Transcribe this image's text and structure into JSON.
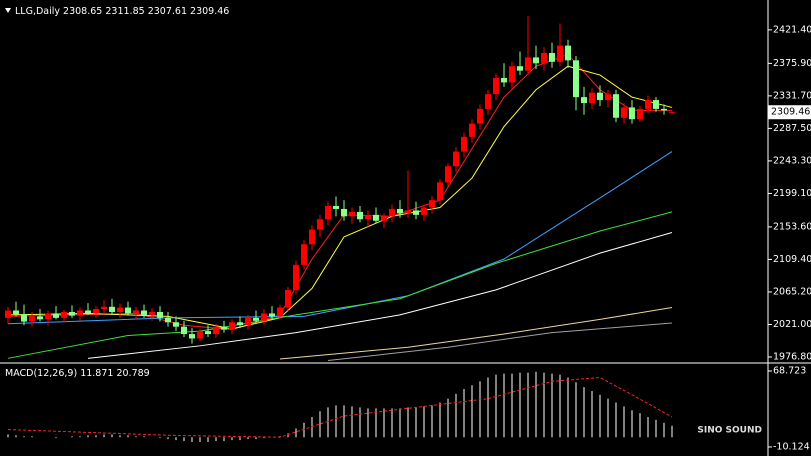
{
  "chart_data": [
    {
      "type": "candlestick",
      "title": "LLG,Daily",
      "up_color": "#ff0000",
      "down_color": "#8cff8c",
      "ylim": [
        1970,
        2462
      ],
      "yticks": [
        {
          "value": 2421.4,
          "label": "2421.40"
        },
        {
          "value": 2375.9,
          "label": "2375.90"
        },
        {
          "value": 2331.7,
          "label": "2331.70"
        },
        {
          "value": 2287.5,
          "label": "2287.50"
        },
        {
          "value": 2243.3,
          "label": "2243.30"
        },
        {
          "value": 2199.1,
          "label": "2199.10"
        },
        {
          "value": 2153.6,
          "label": "2153.60"
        },
        {
          "value": 2109.4,
          "label": "2109.40"
        },
        {
          "value": 2065.2,
          "label": "2065.20"
        },
        {
          "value": 2021,
          "label": "2021.00"
        },
        {
          "value": 1976.8,
          "label": "1976.80"
        }
      ],
      "ohlc": [
        [
          2030,
          2045,
          2022,
          2040
        ],
        [
          2040,
          2052,
          2032,
          2035
        ],
        [
          2035,
          2048,
          2020,
          2025
        ],
        [
          2025,
          2038,
          2018,
          2032
        ],
        [
          2032,
          2042,
          2025,
          2028
        ],
        [
          2028,
          2040,
          2020,
          2036
        ],
        [
          2036,
          2046,
          2028,
          2030
        ],
        [
          2030,
          2041,
          2024,
          2038
        ],
        [
          2038,
          2047,
          2030,
          2033
        ],
        [
          2033,
          2044,
          2026,
          2040
        ],
        [
          2040,
          2050,
          2034,
          2036
        ],
        [
          2036,
          2046,
          2030,
          2042
        ],
        [
          2042,
          2054,
          2035,
          2045
        ],
        [
          2045,
          2056,
          2034,
          2038
        ],
        [
          2038,
          2049,
          2030,
          2044
        ],
        [
          2044,
          2052,
          2033,
          2036
        ],
        [
          2036,
          2045,
          2028,
          2040
        ],
        [
          2040,
          2048,
          2030,
          2034
        ],
        [
          2034,
          2043,
          2026,
          2038
        ],
        [
          2038,
          2046,
          2025,
          2030
        ],
        [
          2030,
          2038,
          2018,
          2024
        ],
        [
          2024,
          2032,
          2012,
          2018
        ],
        [
          2018,
          2026,
          2004,
          2008
        ],
        [
          2008,
          2016,
          1995,
          2002
        ],
        [
          2002,
          2015,
          1998,
          2012
        ],
        [
          2012,
          2020,
          2004,
          2008
        ],
        [
          2008,
          2022,
          2003,
          2018
        ],
        [
          2018,
          2026,
          2010,
          2014
        ],
        [
          2014,
          2028,
          2008,
          2024
        ],
        [
          2024,
          2032,
          2016,
          2020
        ],
        [
          2020,
          2034,
          2014,
          2030
        ],
        [
          2030,
          2040,
          2022,
          2026
        ],
        [
          2026,
          2042,
          2020,
          2036
        ],
        [
          2036,
          2046,
          2028,
          2032
        ],
        [
          2032,
          2048,
          2028,
          2044
        ],
        [
          2044,
          2072,
          2040,
          2068
        ],
        [
          2068,
          2108,
          2062,
          2102
        ],
        [
          2102,
          2136,
          2096,
          2130
        ],
        [
          2130,
          2156,
          2122,
          2150
        ],
        [
          2150,
          2170,
          2140,
          2164
        ],
        [
          2164,
          2188,
          2156,
          2182
        ],
        [
          2182,
          2195,
          2168,
          2178
        ],
        [
          2178,
          2190,
          2162,
          2168
        ],
        [
          2168,
          2180,
          2158,
          2174
        ],
        [
          2174,
          2182,
          2160,
          2164
        ],
        [
          2164,
          2176,
          2154,
          2170
        ],
        [
          2170,
          2180,
          2158,
          2162
        ],
        [
          2162,
          2172,
          2152,
          2168
        ],
        [
          2168,
          2184,
          2160,
          2178
        ],
        [
          2178,
          2190,
          2166,
          2172
        ],
        [
          2172,
          2230,
          2166,
          2176
        ],
        [
          2176,
          2188,
          2164,
          2170
        ],
        [
          2170,
          2184,
          2162,
          2180
        ],
        [
          2180,
          2196,
          2172,
          2190
        ],
        [
          2190,
          2218,
          2184,
          2214
        ],
        [
          2214,
          2240,
          2208,
          2236
        ],
        [
          2236,
          2262,
          2228,
          2256
        ],
        [
          2256,
          2282,
          2248,
          2276
        ],
        [
          2276,
          2300,
          2268,
          2294
        ],
        [
          2294,
          2320,
          2286,
          2314
        ],
        [
          2314,
          2340,
          2306,
          2334
        ],
        [
          2334,
          2362,
          2326,
          2356
        ],
        [
          2356,
          2376,
          2344,
          2350
        ],
        [
          2350,
          2378,
          2340,
          2372
        ],
        [
          2372,
          2392,
          2360,
          2366
        ],
        [
          2366,
          2440,
          2360,
          2384
        ],
        [
          2384,
          2400,
          2368,
          2376
        ],
        [
          2376,
          2398,
          2366,
          2390
        ],
        [
          2390,
          2404,
          2370,
          2378
        ],
        [
          2378,
          2430,
          2372,
          2400
        ],
        [
          2400,
          2408,
          2370,
          2380
        ],
        [
          2380,
          2386,
          2312,
          2330
        ],
        [
          2330,
          2344,
          2306,
          2322
        ],
        [
          2322,
          2342,
          2314,
          2336
        ],
        [
          2336,
          2346,
          2318,
          2326
        ],
        [
          2326,
          2340,
          2316,
          2334
        ],
        [
          2334,
          2340,
          2296,
          2302
        ],
        [
          2302,
          2322,
          2294,
          2316
        ],
        [
          2316,
          2326,
          2294,
          2300
        ],
        [
          2300,
          2318,
          2296,
          2314
        ],
        [
          2314,
          2332,
          2308,
          2326
        ],
        [
          2326,
          2330,
          2310,
          2314
        ],
        [
          2314,
          2320,
          2306,
          2312
        ],
        [
          2308.65,
          2311.85,
          2307.61,
          2309.46
        ]
      ],
      "series": [
        {
          "color": "#ff2020",
          "x": [
            0,
            8,
            16,
            22,
            28,
            34,
            38,
            42,
            48,
            54,
            58,
            62,
            66,
            70,
            74,
            78,
            83
          ],
          "values": [
            2032,
            2034,
            2036,
            2020,
            2014,
            2034,
            2110,
            2170,
            2168,
            2190,
            2260,
            2330,
            2372,
            2388,
            2340,
            2312,
            2312
          ]
        },
        {
          "color": "#ffff40",
          "x": [
            0,
            10,
            20,
            28,
            34,
            38,
            42,
            48,
            54,
            58,
            62,
            66,
            70,
            74,
            78,
            83
          ],
          "values": [
            2034,
            2036,
            2032,
            2015,
            2030,
            2070,
            2140,
            2168,
            2180,
            2220,
            2290,
            2340,
            2372,
            2360,
            2330,
            2316
          ]
        },
        {
          "color": "#3fa0ff",
          "x": [
            0,
            20,
            37,
            50,
            62,
            75,
            83
          ],
          "values": [
            2022,
            2030,
            2032,
            2060,
            2110,
            2200,
            2256
          ]
        },
        {
          "color": "#40e040",
          "x": [
            0,
            15,
            24,
            36,
            49,
            61,
            74,
            83
          ],
          "values": [
            1975,
            2006,
            2012,
            2034,
            2056,
            2104,
            2148,
            2174
          ]
        },
        {
          "color": "#ffffff",
          "x": [
            10,
            24,
            36,
            49,
            61,
            74,
            83
          ],
          "values": [
            1975,
            1992,
            2010,
            2034,
            2068,
            2118,
            2146
          ]
        },
        {
          "color": "#e8d8a0",
          "x": [
            34,
            50,
            62,
            74,
            83
          ],
          "values": [
            1974,
            1990,
            2008,
            2028,
            2044
          ]
        },
        {
          "color": "#a0a0a0",
          "x": [
            40,
            55,
            68,
            83
          ],
          "values": [
            1972,
            1990,
            2010,
            2023
          ]
        }
      ]
    },
    {
      "type": "macd",
      "title": "MACD(12,26,9)",
      "watermark": "SINO SOUND",
      "ylim": [
        -19.5,
        76
      ],
      "yticks": [
        {
          "value": 68.723,
          "label": "68.723"
        },
        {
          "value": -10.124,
          "label": "-10.124"
        }
      ],
      "histogram_color": "#ffffff",
      "signal_color": "#ff2020",
      "values": [
        3,
        2,
        1,
        1,
        0,
        0,
        -1,
        0,
        1,
        1,
        2,
        2,
        3,
        3,
        2,
        2,
        1,
        1,
        0,
        -1,
        -2,
        -3,
        -4,
        -5,
        -5,
        -5,
        -4,
        -4,
        -3,
        -3,
        -2,
        -2,
        -1,
        0,
        1,
        4,
        9,
        15,
        21,
        27,
        31,
        33,
        33,
        32,
        31,
        30,
        30,
        30,
        30,
        30,
        31,
        31,
        32,
        33,
        36,
        40,
        45,
        50,
        54,
        58,
        62,
        65,
        66,
        66,
        67,
        67,
        68,
        67,
        66,
        65,
        62,
        57,
        52,
        48,
        44,
        40,
        36,
        32,
        28,
        25,
        21,
        18,
        15,
        11.871
      ],
      "signal": {
        "x": [
          0,
          20,
          34,
          42,
          50,
          60,
          68,
          74,
          80,
          83
        ],
        "values": [
          8,
          2,
          0,
          22,
          30,
          40,
          58,
          62,
          35,
          20.789
        ]
      }
    }
  ]
}
